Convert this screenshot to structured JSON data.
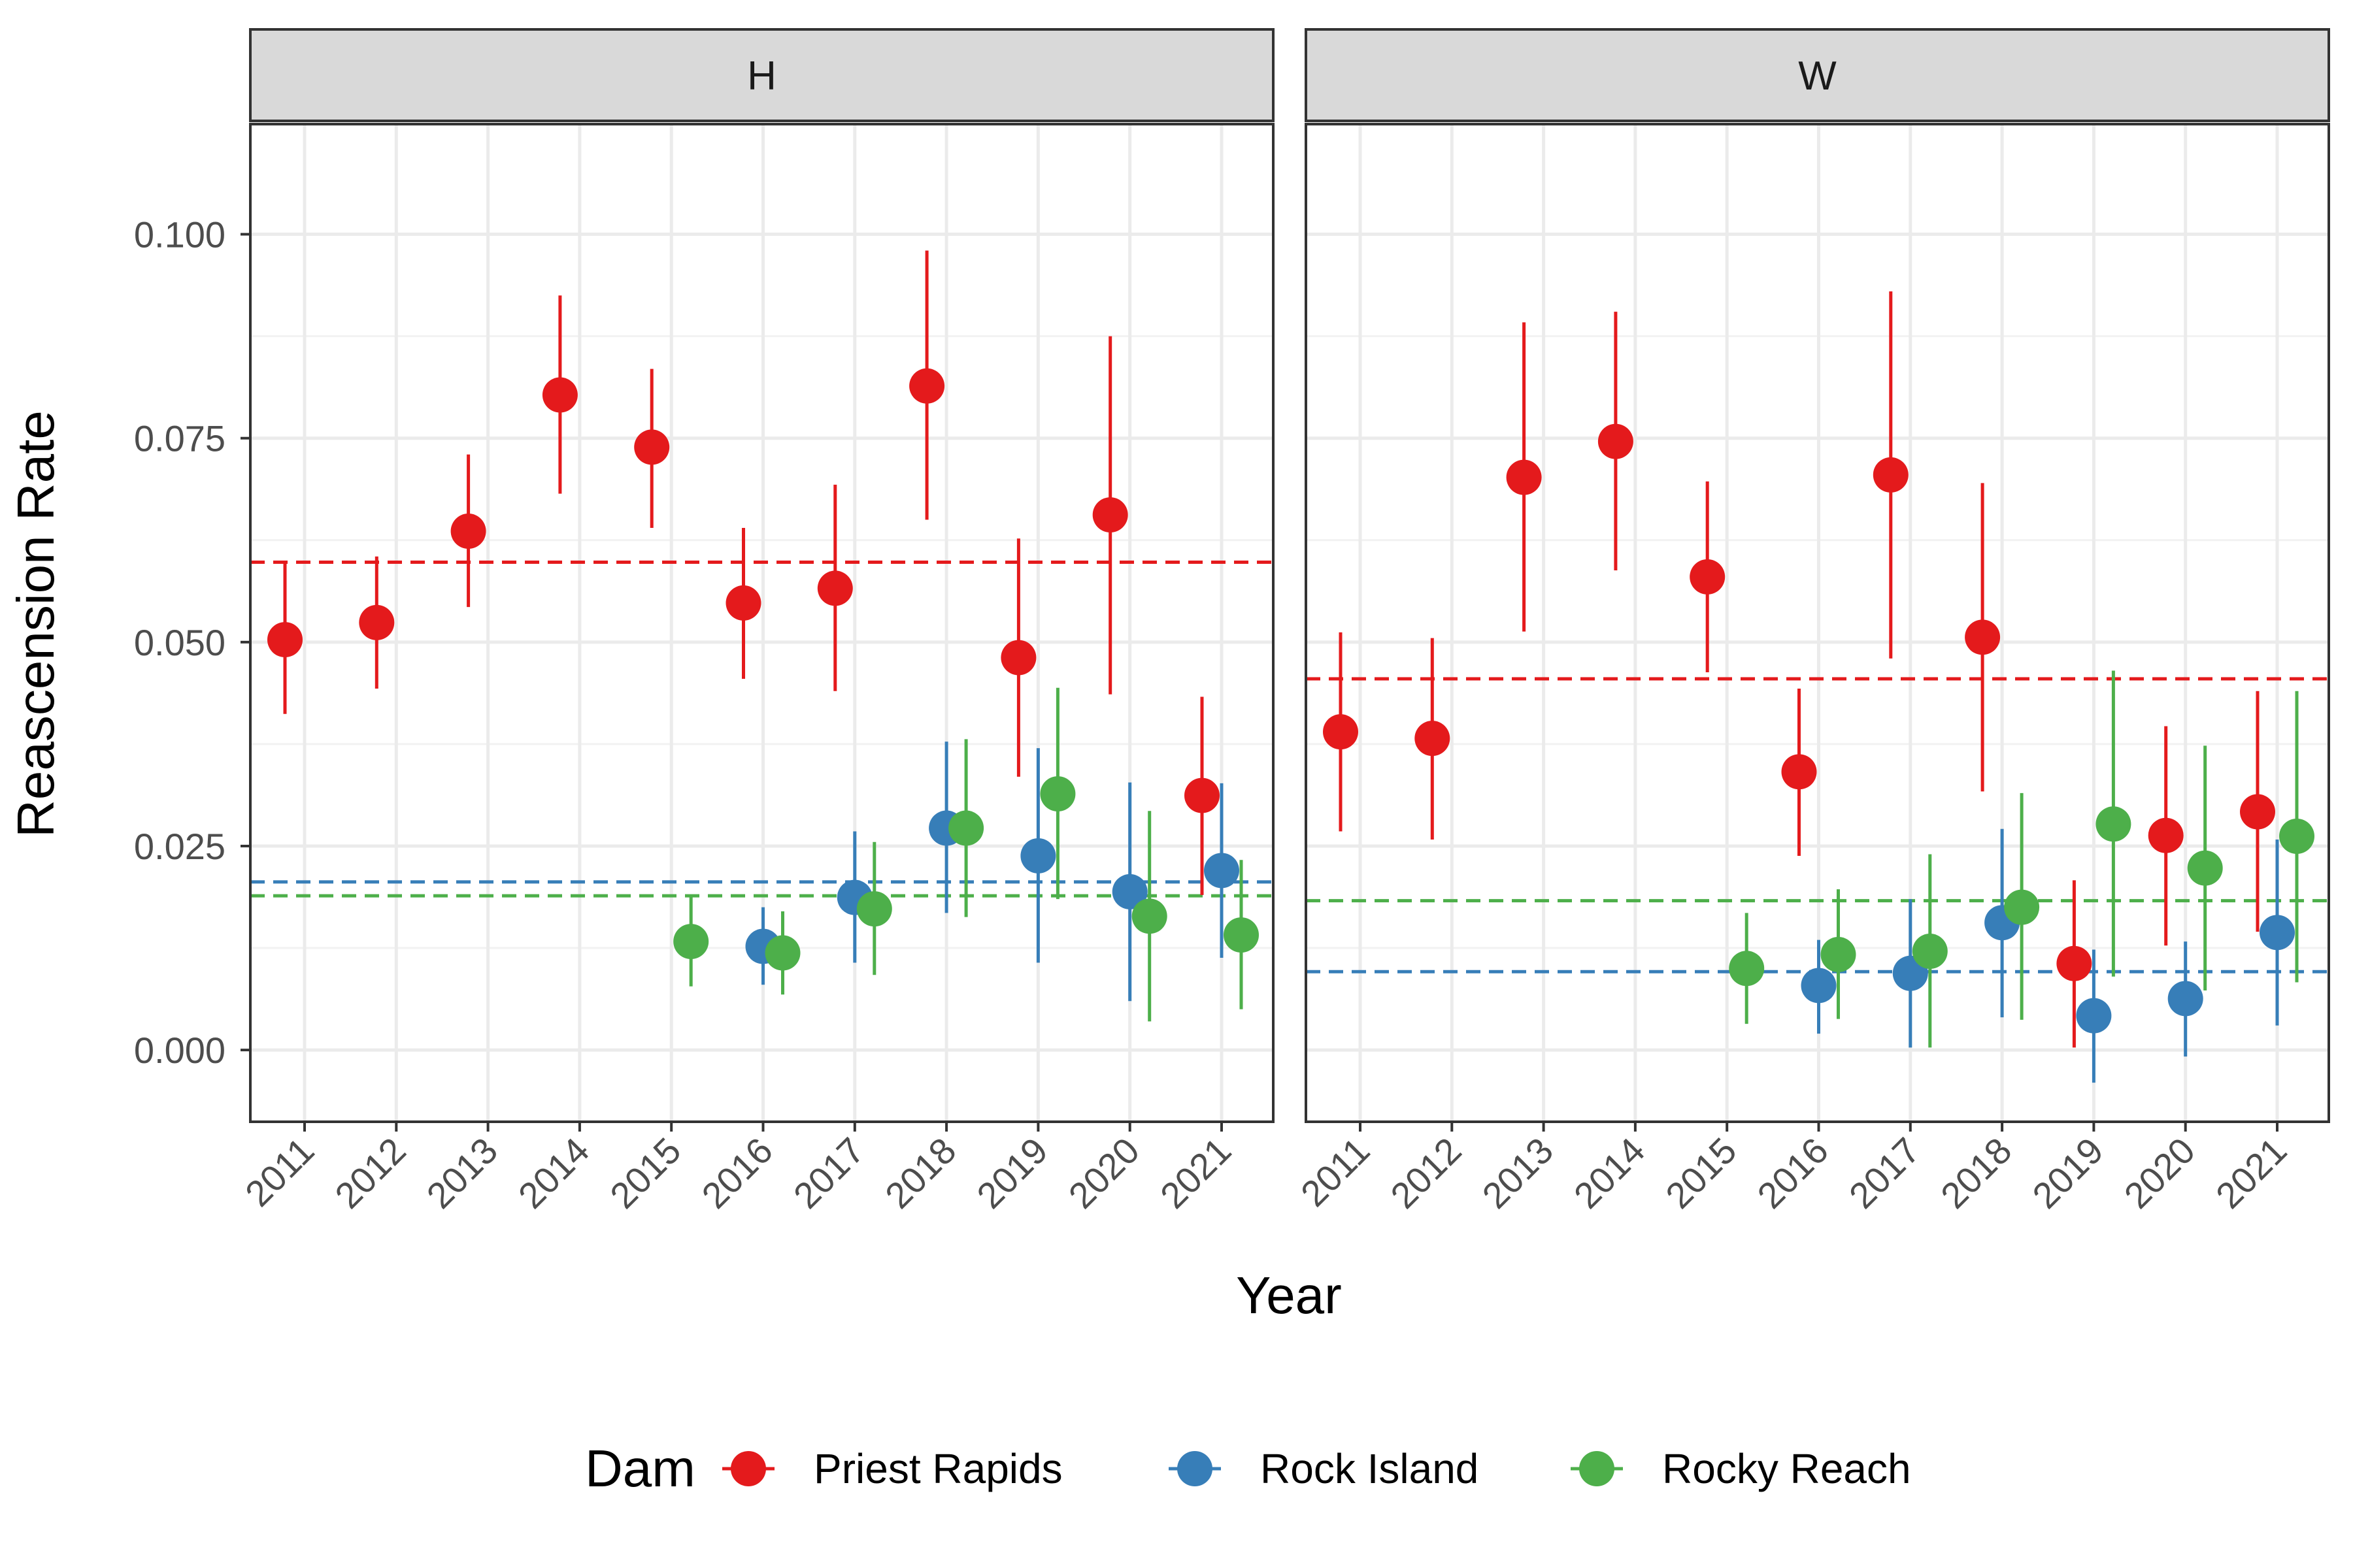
{
  "chart_data": {
    "type": "scatter",
    "subtype": "point-range with reference lines, faceted",
    "xlabel": "Year",
    "ylabel": "Reascension Rate",
    "ylim": [
      -0.0088,
      0.1135
    ],
    "yticks": [
      "0.000",
      "0.025",
      "0.050",
      "0.075",
      "0.100"
    ],
    "ytick_values": [
      0,
      0.025,
      0.05,
      0.075,
      0.1
    ],
    "categories": [
      "2011",
      "2012",
      "2013",
      "2014",
      "2015",
      "2016",
      "2017",
      "2018",
      "2019",
      "2020",
      "2021"
    ],
    "grid": true,
    "legend": {
      "title": "Dam",
      "position": "bottom"
    },
    "series": [
      {
        "name": "Priest Rapids",
        "color": "#E41A1C"
      },
      {
        "name": "Rock Island",
        "color": "#377EB8"
      },
      {
        "name": "Rocky Reach",
        "color": "#4DAF4A"
      }
    ],
    "facets": [
      {
        "label": "H",
        "mean_lines": {
          "Priest Rapids": 0.0598,
          "Rock Island": 0.0206,
          "Rocky Reach": 0.0189
        },
        "points": {
          "Priest Rapids": [
            {
              "x": "2011",
              "y": 0.0503,
              "lo": 0.0412,
              "hi": 0.0598
            },
            {
              "x": "2012",
              "y": 0.0524,
              "lo": 0.0443,
              "hi": 0.0605
            },
            {
              "x": "2013",
              "y": 0.0636,
              "lo": 0.0543,
              "hi": 0.073
            },
            {
              "x": "2014",
              "y": 0.0803,
              "lo": 0.0682,
              "hi": 0.0925
            },
            {
              "x": "2015",
              "y": 0.0739,
              "lo": 0.064,
              "hi": 0.0835
            },
            {
              "x": "2016",
              "y": 0.0548,
              "lo": 0.0455,
              "hi": 0.064
            },
            {
              "x": "2017",
              "y": 0.0566,
              "lo": 0.044,
              "hi": 0.0693
            },
            {
              "x": "2018",
              "y": 0.0814,
              "lo": 0.065,
              "hi": 0.098
            },
            {
              "x": "2019",
              "y": 0.0481,
              "lo": 0.0335,
              "hi": 0.0627
            },
            {
              "x": "2020",
              "y": 0.0656,
              "lo": 0.0436,
              "hi": 0.0875
            },
            {
              "x": "2021",
              "y": 0.0312,
              "lo": 0.019,
              "hi": 0.0433
            }
          ],
          "Rock Island": [
            {
              "x": "2016",
              "y": 0.0127,
              "lo": 0.008,
              "hi": 0.0175
            },
            {
              "x": "2017",
              "y": 0.0187,
              "lo": 0.0107,
              "hi": 0.0268
            },
            {
              "x": "2018",
              "y": 0.0272,
              "lo": 0.0168,
              "hi": 0.0378
            },
            {
              "x": "2019",
              "y": 0.0238,
              "lo": 0.0107,
              "hi": 0.037
            },
            {
              "x": "2020",
              "y": 0.0194,
              "lo": 0.006,
              "hi": 0.0328
            },
            {
              "x": "2021",
              "y": 0.022,
              "lo": 0.0113,
              "hi": 0.0327
            }
          ],
          "Rocky Reach": [
            {
              "x": "2015",
              "y": 0.0133,
              "lo": 0.0078,
              "hi": 0.0188
            },
            {
              "x": "2016",
              "y": 0.0119,
              "lo": 0.0068,
              "hi": 0.017
            },
            {
              "x": "2017",
              "y": 0.0173,
              "lo": 0.0092,
              "hi": 0.0255
            },
            {
              "x": "2018",
              "y": 0.0272,
              "lo": 0.0163,
              "hi": 0.0381
            },
            {
              "x": "2019",
              "y": 0.0314,
              "lo": 0.0185,
              "hi": 0.0444
            },
            {
              "x": "2020",
              "y": 0.0164,
              "lo": 0.0035,
              "hi": 0.0293
            },
            {
              "x": "2021",
              "y": 0.0141,
              "lo": 0.005,
              "hi": 0.0233
            }
          ]
        }
      },
      {
        "label": "W",
        "mean_lines": {
          "Priest Rapids": 0.0455,
          "Rock Island": 0.0096,
          "Rocky Reach": 0.0183
        },
        "points": {
          "Priest Rapids": [
            {
              "x": "2011",
              "y": 0.039,
              "lo": 0.0268,
              "hi": 0.0512
            },
            {
              "x": "2012",
              "y": 0.0382,
              "lo": 0.0258,
              "hi": 0.0505
            },
            {
              "x": "2013",
              "y": 0.0702,
              "lo": 0.0513,
              "hi": 0.0892
            },
            {
              "x": "2014",
              "y": 0.0746,
              "lo": 0.0588,
              "hi": 0.0905
            },
            {
              "x": "2015",
              "y": 0.058,
              "lo": 0.0463,
              "hi": 0.0697
            },
            {
              "x": "2016",
              "y": 0.0341,
              "lo": 0.0238,
              "hi": 0.0443
            },
            {
              "x": "2017",
              "y": 0.0705,
              "lo": 0.048,
              "hi": 0.093
            },
            {
              "x": "2018",
              "y": 0.0506,
              "lo": 0.0317,
              "hi": 0.0695
            },
            {
              "x": "2019",
              "y": 0.0106,
              "lo": 0.0003,
              "hi": 0.0208
            },
            {
              "x": "2020",
              "y": 0.0263,
              "lo": 0.0128,
              "hi": 0.0397
            },
            {
              "x": "2021",
              "y": 0.0292,
              "lo": 0.0145,
              "hi": 0.044
            }
          ],
          "Rock Island": [
            {
              "x": "2016",
              "y": 0.0079,
              "lo": 0.002,
              "hi": 0.0135
            },
            {
              "x": "2017",
              "y": 0.0094,
              "lo": 0.0003,
              "hi": 0.0185
            },
            {
              "x": "2018",
              "y": 0.0156,
              "lo": 0.004,
              "hi": 0.0271
            },
            {
              "x": "2019",
              "y": 0.0042,
              "lo": -0.004,
              "hi": 0.0123
            },
            {
              "x": "2020",
              "y": 0.0063,
              "lo": -0.0008,
              "hi": 0.0133
            },
            {
              "x": "2021",
              "y": 0.0144,
              "lo": 0.003,
              "hi": 0.0258
            }
          ],
          "Rocky Reach": [
            {
              "x": "2015",
              "y": 0.01,
              "lo": 0.0032,
              "hi": 0.0168
            },
            {
              "x": "2016",
              "y": 0.0117,
              "lo": 0.0038,
              "hi": 0.0197
            },
            {
              "x": "2017",
              "y": 0.0121,
              "lo": 0.0003,
              "hi": 0.024
            },
            {
              "x": "2018",
              "y": 0.0175,
              "lo": 0.0037,
              "hi": 0.0315
            },
            {
              "x": "2019",
              "y": 0.0277,
              "lo": 0.009,
              "hi": 0.0465
            },
            {
              "x": "2020",
              "y": 0.0223,
              "lo": 0.0073,
              "hi": 0.0373
            },
            {
              "x": "2021",
              "y": 0.0262,
              "lo": 0.0083,
              "hi": 0.044
            }
          ]
        }
      }
    ]
  }
}
